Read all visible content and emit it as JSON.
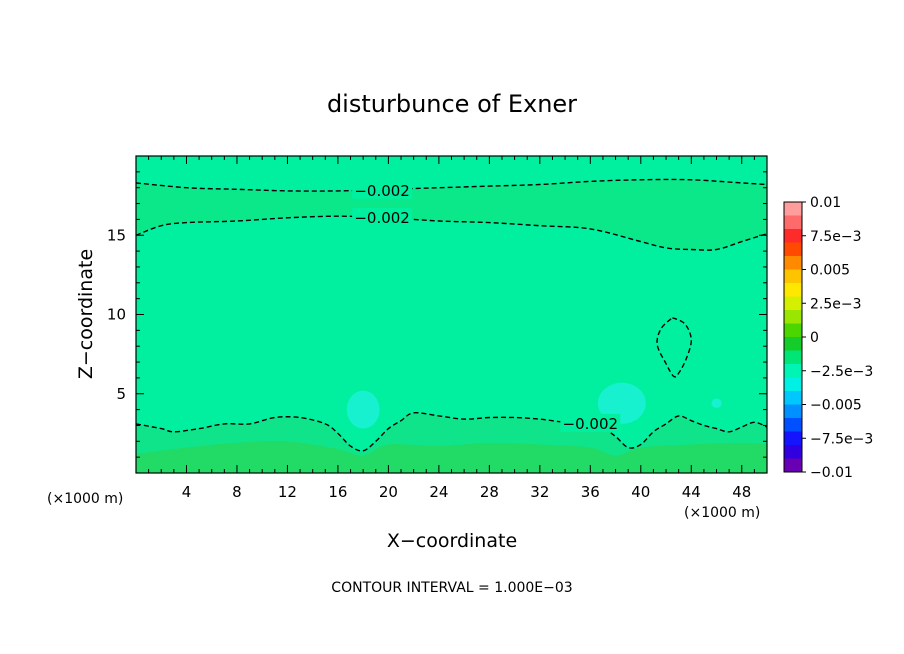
{
  "chart_data": {
    "type": "heatmap",
    "title": "disturbunce of Exner",
    "xlabel": "X−coordinate",
    "ylabel": "Z−coordinate",
    "x_unit_left": "(×1000 m)",
    "x_unit_right": "(×1000 m)",
    "xlim": [
      0,
      50
    ],
    "ylim": [
      0,
      20
    ],
    "x_ticks": [
      4,
      8,
      12,
      16,
      20,
      24,
      28,
      32,
      36,
      40,
      44,
      48
    ],
    "y_ticks": [
      5,
      10,
      15
    ],
    "footer": "CONTOUR INTERVAL = 1.000E−03",
    "colorbar": {
      "levels": [
        "0.01",
        "7.5e−3",
        "0.005",
        "2.5e−3",
        "0",
        "−2.5e−3",
        "−0.005",
        "−7.5e−3",
        "−0.01"
      ],
      "colors": [
        "#ff9c9c",
        "#ff6a6a",
        "#ff2a2a",
        "#ff4a00",
        "#ff8a00",
        "#ffc400",
        "#ffe800",
        "#d4f000",
        "#9ae600",
        "#4cd600",
        "#14cc2a",
        "#00e676",
        "#00f5b4",
        "#00f0e6",
        "#00c8ff",
        "#0090ff",
        "#0050ff",
        "#1414ff",
        "#3000e0",
        "#6a00b4"
      ]
    },
    "contour_labels": [
      {
        "text": "−0.002",
        "x": 19.5,
        "z": 17.8
      },
      {
        "text": "−0.002",
        "x": 19.5,
        "z": 16.1
      },
      {
        "text": "−0.002",
        "x": 36.0,
        "z": 3.1
      }
    ],
    "contours": [
      {
        "value": -0.002,
        "points": [
          [
            0,
            18.3
          ],
          [
            4,
            18.0
          ],
          [
            8,
            17.9
          ],
          [
            12,
            17.8
          ],
          [
            16,
            17.8
          ],
          [
            20,
            17.9
          ],
          [
            24,
            18.0
          ],
          [
            28,
            18.1
          ],
          [
            32,
            18.2
          ],
          [
            36,
            18.4
          ],
          [
            40,
            18.5
          ],
          [
            44,
            18.5
          ],
          [
            48,
            18.3
          ],
          [
            50,
            18.2
          ]
        ]
      },
      {
        "value": -0.002,
        "points": [
          [
            0,
            15.0
          ],
          [
            2,
            15.6
          ],
          [
            4,
            15.8
          ],
          [
            8,
            15.9
          ],
          [
            12,
            16.1
          ],
          [
            16,
            16.2
          ],
          [
            20,
            16.1
          ],
          [
            24,
            15.9
          ],
          [
            28,
            15.8
          ],
          [
            32,
            15.6
          ],
          [
            36,
            15.4
          ],
          [
            40,
            14.6
          ],
          [
            42,
            14.2
          ],
          [
            44,
            14.1
          ],
          [
            46,
            14.1
          ],
          [
            48,
            14.6
          ],
          [
            50,
            15.1
          ]
        ]
      },
      {
        "value": -0.002,
        "points": [
          [
            0,
            3.1
          ],
          [
            2,
            2.8
          ],
          [
            3,
            2.6
          ],
          [
            5,
            2.8
          ],
          [
            7,
            3.1
          ],
          [
            9,
            3.1
          ],
          [
            11,
            3.5
          ],
          [
            13,
            3.5
          ],
          [
            15,
            3.1
          ],
          [
            16,
            2.5
          ],
          [
            17,
            1.7
          ],
          [
            18,
            1.4
          ],
          [
            19,
            2.0
          ],
          [
            20,
            2.8
          ],
          [
            21,
            3.3
          ],
          [
            22,
            3.8
          ],
          [
            24,
            3.6
          ],
          [
            26,
            3.4
          ],
          [
            28,
            3.5
          ],
          [
            30,
            3.5
          ],
          [
            32,
            3.4
          ],
          [
            34,
            3.2
          ],
          [
            35,
            3.2
          ],
          [
            37,
            2.8
          ],
          [
            38,
            2.3
          ],
          [
            39,
            1.6
          ],
          [
            40,
            1.8
          ],
          [
            41,
            2.6
          ],
          [
            42,
            3.1
          ],
          [
            43,
            3.6
          ],
          [
            44,
            3.3
          ],
          [
            45,
            3.0
          ],
          [
            46,
            2.8
          ],
          [
            47,
            2.6
          ],
          [
            48,
            2.9
          ],
          [
            49,
            3.2
          ],
          [
            50,
            2.9
          ]
        ]
      },
      {
        "value": -0.002,
        "points": [
          [
            42.5,
            9.8
          ],
          [
            43.5,
            9.4
          ],
          [
            44,
            8.4
          ],
          [
            43.6,
            7.2
          ],
          [
            43,
            6.3
          ],
          [
            42.6,
            6.1
          ],
          [
            42,
            6.9
          ],
          [
            41.3,
            8.1
          ],
          [
            41.6,
            9.1
          ],
          [
            42.5,
            9.8
          ]
        ]
      }
    ],
    "features": [
      {
        "kind": "cyan-blob",
        "x": 18.0,
        "z": 4.0,
        "rx": 1.3,
        "rz": 1.2
      },
      {
        "kind": "cyan-blob",
        "x": 38.5,
        "z": 4.4,
        "rx": 1.9,
        "rz": 1.3
      },
      {
        "kind": "cyan-blob",
        "x": 46.0,
        "z": 4.4,
        "rx": 0.4,
        "rz": 0.3
      }
    ]
  }
}
